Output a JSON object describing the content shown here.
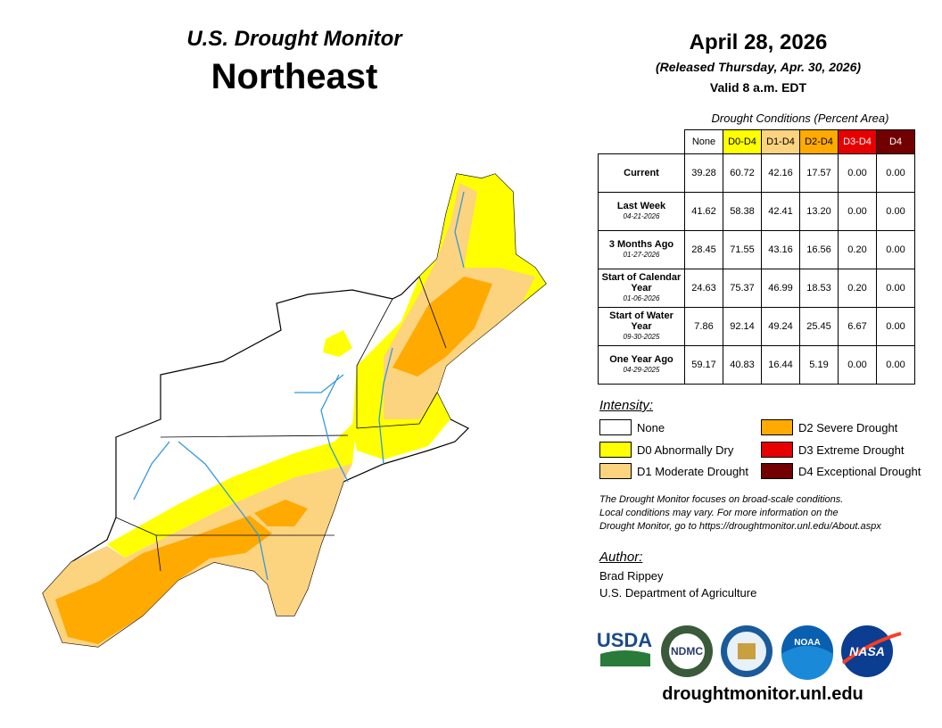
{
  "header": {
    "title": "U.S. Drought Monitor",
    "region": "Northeast",
    "date": "April 28, 2026",
    "released": "(Released Thursday, Apr. 30, 2026)",
    "valid": "Valid 8 a.m. EDT"
  },
  "table": {
    "caption": "Drought Conditions (Percent Area)",
    "columns": [
      {
        "label": "None",
        "color": "#ffffff",
        "text": "#000000"
      },
      {
        "label": "D0-D4",
        "color": "#ffff00",
        "text": "#000000"
      },
      {
        "label": "D1-D4",
        "color": "#fcd37f",
        "text": "#000000"
      },
      {
        "label": "D2-D4",
        "color": "#ffaa00",
        "text": "#000000"
      },
      {
        "label": "D3-D4",
        "color": "#e60000",
        "text": "#ffffff"
      },
      {
        "label": "D4",
        "color": "#730000",
        "text": "#ffffff"
      }
    ],
    "rows": [
      {
        "label": "Current",
        "values": [
          "39.28",
          "60.72",
          "42.16",
          "17.57",
          "0.00",
          "0.00"
        ]
      },
      {
        "label": "Last Week",
        "date": "04-21-2026",
        "values": [
          "41.62",
          "58.38",
          "42.41",
          "13.20",
          "0.00",
          "0.00"
        ]
      },
      {
        "label": "3 Months Ago",
        "date": "01-27-2026",
        "values": [
          "28.45",
          "71.55",
          "43.16",
          "16.56",
          "0.20",
          "0.00"
        ]
      },
      {
        "label": "Start of Calendar Year",
        "date": "01-06-2026",
        "values": [
          "24.63",
          "75.37",
          "46.99",
          "18.53",
          "0.20",
          "0.00"
        ]
      },
      {
        "label": "Start of Water Year",
        "date": "09-30-2025",
        "values": [
          "7.86",
          "92.14",
          "49.24",
          "25.45",
          "6.67",
          "0.00"
        ]
      },
      {
        "label": "One Year Ago",
        "date": "04-29-2025",
        "values": [
          "59.17",
          "40.83",
          "16.44",
          "5.19",
          "0.00",
          "0.00"
        ]
      }
    ]
  },
  "legend": {
    "title": "Intensity:",
    "items": [
      {
        "label": "None",
        "color": "#ffffff"
      },
      {
        "label": "D0 Abnormally Dry",
        "color": "#ffff00"
      },
      {
        "label": "D1 Moderate Drought",
        "color": "#fcd37f"
      },
      {
        "label": "D2 Severe Drought",
        "color": "#ffaa00"
      },
      {
        "label": "D3 Extreme Drought",
        "color": "#e60000"
      },
      {
        "label": "D4 Exceptional Drought",
        "color": "#730000"
      }
    ]
  },
  "note": [
    "The Drought Monitor focuses on broad-scale conditions.",
    "Local conditions may vary. For more information on the",
    "Drought Monitor, go to https://droughtmonitor.unl.edu/About.aspx"
  ],
  "author": {
    "heading": "Author:",
    "name": "Brad Rippey",
    "org": "U.S. Department of Agriculture"
  },
  "logos": [
    "USDA",
    "NDMC",
    "NOAA",
    "NASA"
  ],
  "footer": "droughtmonitor.unl.edu"
}
